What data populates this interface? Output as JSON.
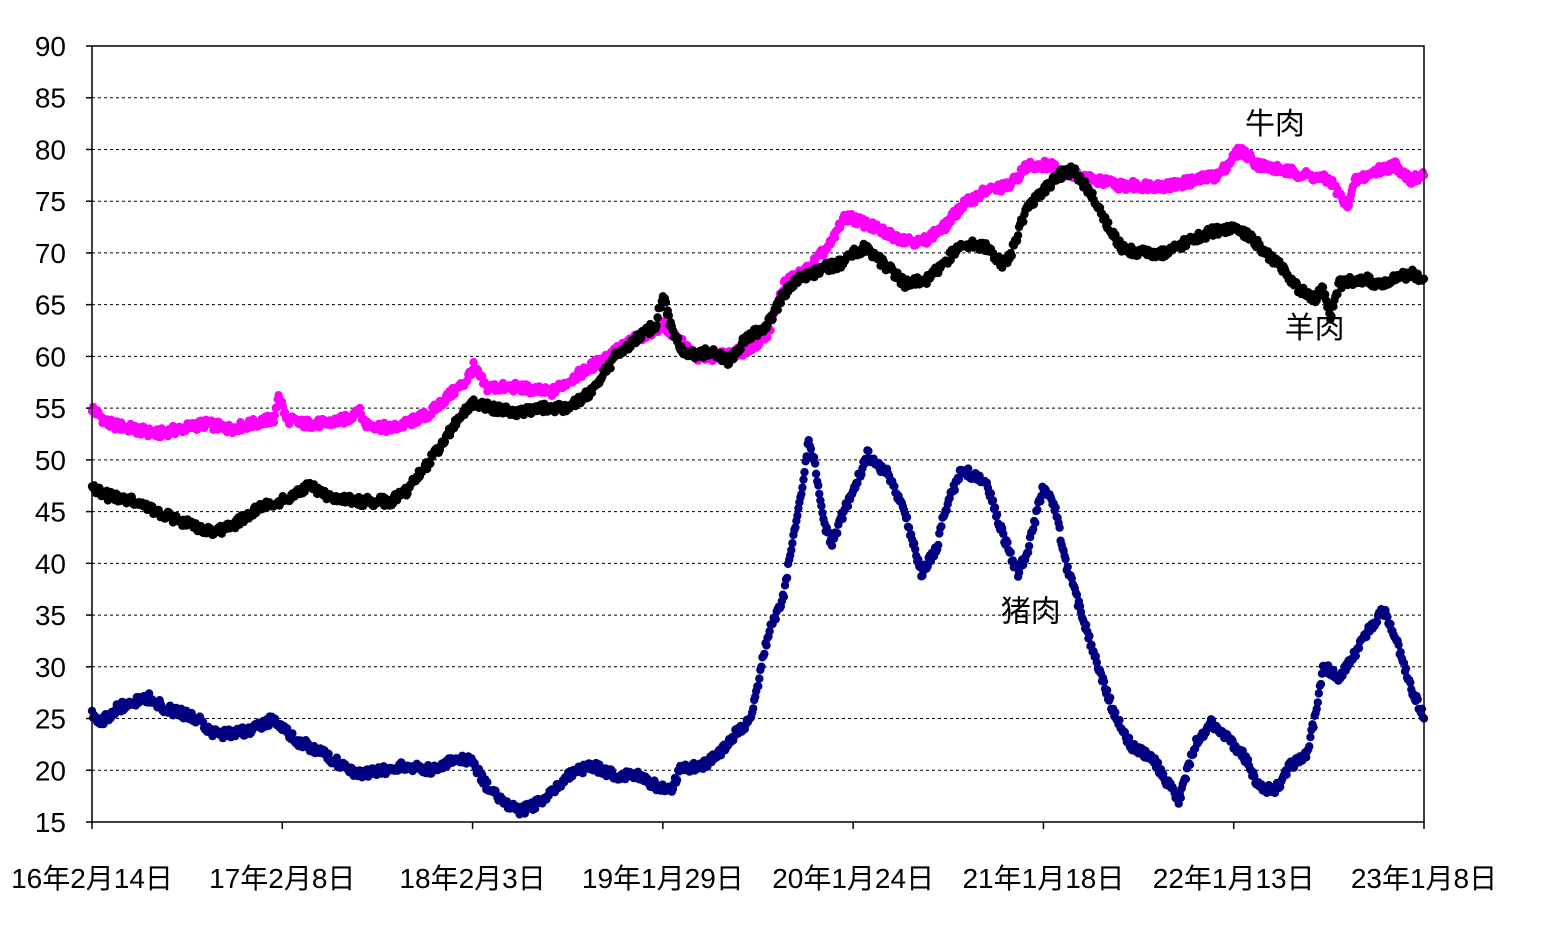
{
  "chart_data": {
    "type": "scatter",
    "title": "",
    "xlabel": "",
    "ylabel": "",
    "x_domain": [
      "2016-02-14",
      "2023-01-08"
    ],
    "ylim": [
      15,
      90
    ],
    "y_ticks": [
      15,
      20,
      25,
      30,
      35,
      40,
      45,
      50,
      55,
      60,
      65,
      70,
      75,
      80,
      85,
      90
    ],
    "x_tick_labels": [
      {
        "date": "2016-02-14",
        "label": "16年2月14日"
      },
      {
        "date": "2017-02-08",
        "label": "17年2月8日"
      },
      {
        "date": "2018-02-03",
        "label": "18年2月3日"
      },
      {
        "date": "2019-01-29",
        "label": "19年1月29日"
      },
      {
        "date": "2020-01-24",
        "label": "20年1月24日"
      },
      {
        "date": "2021-01-18",
        "label": "21年1月18日"
      },
      {
        "date": "2022-01-13",
        "label": "22年1月13日"
      },
      {
        "date": "2023-01-08",
        "label": "23年1月8日"
      }
    ],
    "grid": "horizontal-dashed",
    "series": [
      {
        "name": "牛肉",
        "color": "#ff00ff",
        "points": [
          [
            "2016-02-14",
            55.0
          ],
          [
            "2016-03-15",
            53.5
          ],
          [
            "2016-05-01",
            53.0
          ],
          [
            "2016-06-15",
            52.5
          ],
          [
            "2016-08-01",
            53.0
          ],
          [
            "2016-09-15",
            53.5
          ],
          [
            "2016-11-01",
            53.0
          ],
          [
            "2016-12-15",
            53.5
          ],
          [
            "2017-01-25",
            54.0
          ],
          [
            "2017-02-01",
            56.5
          ],
          [
            "2017-02-15",
            54.0
          ],
          [
            "2017-03-15",
            53.5
          ],
          [
            "2017-05-01",
            53.5
          ],
          [
            "2017-06-15",
            54.0
          ],
          [
            "2017-07-01",
            55.0
          ],
          [
            "2017-07-15",
            53.5
          ],
          [
            "2017-09-01",
            53.0
          ],
          [
            "2017-10-01",
            53.5
          ],
          [
            "2017-11-15",
            54.5
          ],
          [
            "2017-12-15",
            56.0
          ],
          [
            "2018-01-20",
            57.5
          ],
          [
            "2018-02-05",
            59.0
          ],
          [
            "2018-03-01",
            57.0
          ],
          [
            "2018-05-01",
            57.0
          ],
          [
            "2018-07-01",
            56.5
          ],
          [
            "2018-08-15",
            58.0
          ],
          [
            "2018-10-01",
            59.5
          ],
          [
            "2018-12-01",
            61.5
          ],
          [
            "2019-01-29",
            63.0
          ],
          [
            "2019-03-01",
            61.5
          ],
          [
            "2019-04-01",
            60.0
          ],
          [
            "2019-05-15",
            60.0
          ],
          [
            "2019-07-01",
            60.5
          ],
          [
            "2019-08-15",
            62.0
          ],
          [
            "2019-09-15",
            67.0
          ],
          [
            "2019-11-01",
            68.5
          ],
          [
            "2019-12-15",
            71.0
          ],
          [
            "2020-01-01",
            73.0
          ],
          [
            "2020-01-15",
            73.5
          ],
          [
            "2020-03-01",
            72.5
          ],
          [
            "2020-04-15",
            71.5
          ],
          [
            "2020-06-01",
            71.0
          ],
          [
            "2020-07-15",
            72.5
          ],
          [
            "2020-08-15",
            74.5
          ],
          [
            "2020-10-01",
            76.0
          ],
          [
            "2020-11-15",
            76.5
          ],
          [
            "2020-12-20",
            78.5
          ],
          [
            "2021-02-01",
            78.5
          ],
          [
            "2021-03-15",
            77.5
          ],
          [
            "2021-05-01",
            77.0
          ],
          [
            "2021-06-15",
            76.5
          ],
          [
            "2021-08-01",
            76.5
          ],
          [
            "2021-09-15",
            76.5
          ],
          [
            "2021-11-01",
            77.0
          ],
          [
            "2021-12-15",
            77.5
          ],
          [
            "2022-01-25",
            80.0
          ],
          [
            "2022-03-01",
            78.5
          ],
          [
            "2022-04-15",
            78.0
          ],
          [
            "2022-06-01",
            77.5
          ],
          [
            "2022-07-15",
            77.0
          ],
          [
            "2022-08-15",
            74.5
          ],
          [
            "2022-09-01",
            77.0
          ],
          [
            "2022-10-15",
            78.0
          ],
          [
            "2022-11-15",
            78.5
          ],
          [
            "2022-12-15",
            77.0
          ],
          [
            "2023-01-08",
            77.5
          ]
        ]
      },
      {
        "name": "羊肉",
        "color": "#000000",
        "points": [
          [
            "2016-02-14",
            47.5
          ],
          [
            "2016-03-15",
            46.5
          ],
          [
            "2016-05-01",
            46.0
          ],
          [
            "2016-06-15",
            45.0
          ],
          [
            "2016-08-01",
            44.0
          ],
          [
            "2016-09-01",
            43.5
          ],
          [
            "2016-10-01",
            43.0
          ],
          [
            "2016-11-01",
            43.5
          ],
          [
            "2016-12-01",
            44.5
          ],
          [
            "2017-01-01",
            45.5
          ],
          [
            "2017-02-01",
            46.0
          ],
          [
            "2017-03-01",
            46.5
          ],
          [
            "2017-04-01",
            47.5
          ],
          [
            "2017-05-01",
            46.5
          ],
          [
            "2017-07-01",
            46.0
          ],
          [
            "2017-09-01",
            46.0
          ],
          [
            "2017-10-01",
            47.0
          ],
          [
            "2017-11-01",
            49.0
          ],
          [
            "2017-12-01",
            51.0
          ],
          [
            "2018-01-01",
            53.5
          ],
          [
            "2018-02-03",
            55.5
          ],
          [
            "2018-03-15",
            55.0
          ],
          [
            "2018-05-01",
            54.5
          ],
          [
            "2018-06-15",
            55.0
          ],
          [
            "2018-08-01",
            55.0
          ],
          [
            "2018-09-15",
            56.5
          ],
          [
            "2018-11-01",
            60.0
          ],
          [
            "2018-12-15",
            62.0
          ],
          [
            "2019-01-15",
            63.0
          ],
          [
            "2019-01-29",
            66.0
          ],
          [
            "2019-02-15",
            62.5
          ],
          [
            "2019-03-15",
            60.0
          ],
          [
            "2019-05-01",
            60.5
          ],
          [
            "2019-06-01",
            59.5
          ],
          [
            "2019-07-01",
            61.5
          ],
          [
            "2019-08-15",
            63.0
          ],
          [
            "2019-09-15",
            66.0
          ],
          [
            "2019-10-15",
            67.5
          ],
          [
            "2019-12-01",
            68.5
          ],
          [
            "2020-01-01",
            69.0
          ],
          [
            "2020-01-24",
            70.0
          ],
          [
            "2020-02-15",
            70.5
          ],
          [
            "2020-04-01",
            68.5
          ],
          [
            "2020-05-01",
            67.0
          ],
          [
            "2020-06-15",
            67.5
          ],
          [
            "2020-07-15",
            69.0
          ],
          [
            "2020-08-15",
            71.0
          ],
          [
            "2020-10-01",
            70.5
          ],
          [
            "2020-11-01",
            69.0
          ],
          [
            "2020-11-15",
            69.5
          ],
          [
            "2020-12-15",
            74.0
          ],
          [
            "2021-01-18",
            76.0
          ],
          [
            "2021-02-15",
            77.5
          ],
          [
            "2021-03-15",
            78.0
          ],
          [
            "2021-04-15",
            76.0
          ],
          [
            "2021-05-15",
            73.0
          ],
          [
            "2021-06-15",
            70.5
          ],
          [
            "2021-07-15",
            70.0
          ],
          [
            "2021-09-01",
            70.0
          ],
          [
            "2021-10-15",
            71.0
          ],
          [
            "2021-12-01",
            72.0
          ],
          [
            "2022-01-13",
            72.5
          ],
          [
            "2022-02-15",
            71.5
          ],
          [
            "2022-03-15",
            70.0
          ],
          [
            "2022-04-15",
            68.5
          ],
          [
            "2022-05-15",
            66.5
          ],
          [
            "2022-06-15",
            65.5
          ],
          [
            "2022-07-01",
            66.5
          ],
          [
            "2022-07-15",
            64.0
          ],
          [
            "2022-08-01",
            67.0
          ],
          [
            "2022-09-15",
            67.5
          ],
          [
            "2022-10-15",
            67.0
          ],
          [
            "2022-11-15",
            67.5
          ],
          [
            "2022-12-15",
            68.0
          ],
          [
            "2023-01-08",
            67.5
          ]
        ]
      },
      {
        "name": "猪肉",
        "color": "#000080",
        "points": [
          [
            "2016-02-14",
            25.5
          ],
          [
            "2016-03-01",
            24.5
          ],
          [
            "2016-04-01",
            26.0
          ],
          [
            "2016-05-01",
            26.5
          ],
          [
            "2016-06-01",
            27.0
          ],
          [
            "2016-07-01",
            26.0
          ],
          [
            "2016-08-01",
            25.5
          ],
          [
            "2016-09-01",
            25.0
          ],
          [
            "2016-10-01",
            23.5
          ],
          [
            "2016-11-01",
            23.5
          ],
          [
            "2016-12-15",
            24.0
          ],
          [
            "2017-01-25",
            25.0
          ],
          [
            "2017-03-01",
            23.0
          ],
          [
            "2017-04-15",
            22.0
          ],
          [
            "2017-06-01",
            20.5
          ],
          [
            "2017-07-01",
            19.5
          ],
          [
            "2017-08-15",
            20.0
          ],
          [
            "2017-10-01",
            20.5
          ],
          [
            "2017-11-15",
            20.0
          ],
          [
            "2018-01-01",
            21.0
          ],
          [
            "2018-02-01",
            21.0
          ],
          [
            "2018-03-01",
            18.5
          ],
          [
            "2018-04-01",
            17.0
          ],
          [
            "2018-05-01",
            16.0
          ],
          [
            "2018-06-15",
            17.0
          ],
          [
            "2018-08-01",
            19.5
          ],
          [
            "2018-09-15",
            20.5
          ],
          [
            "2018-11-01",
            19.5
          ],
          [
            "2018-12-15",
            19.5
          ],
          [
            "2019-01-15",
            18.5
          ],
          [
            "2019-02-15",
            18.0
          ],
          [
            "2019-03-01",
            20.0
          ],
          [
            "2019-04-15",
            20.5
          ],
          [
            "2019-05-15",
            21.5
          ],
          [
            "2019-06-15",
            23.5
          ],
          [
            "2019-07-15",
            25.0
          ],
          [
            "2019-08-15",
            33.0
          ],
          [
            "2019-09-15",
            37.0
          ],
          [
            "2019-10-01",
            42.0
          ],
          [
            "2019-10-20",
            47.5
          ],
          [
            "2019-11-01",
            52.0
          ],
          [
            "2019-11-15",
            49.0
          ],
          [
            "2019-12-01",
            43.5
          ],
          [
            "2019-12-15",
            42.0
          ],
          [
            "2020-01-10",
            45.5
          ],
          [
            "2020-02-01",
            48.0
          ],
          [
            "2020-02-20",
            50.5
          ],
          [
            "2020-04-01",
            48.5
          ],
          [
            "2020-05-01",
            45.0
          ],
          [
            "2020-06-01",
            39.0
          ],
          [
            "2020-07-01",
            41.5
          ],
          [
            "2020-07-15",
            45.0
          ],
          [
            "2020-08-15",
            49.0
          ],
          [
            "2020-10-01",
            48.0
          ],
          [
            "2020-11-01",
            43.0
          ],
          [
            "2020-12-01",
            39.0
          ],
          [
            "2020-12-20",
            41.5
          ],
          [
            "2021-01-18",
            47.5
          ],
          [
            "2021-02-10",
            45.0
          ],
          [
            "2021-03-01",
            40.0
          ],
          [
            "2021-04-01",
            35.0
          ],
          [
            "2021-05-01",
            30.0
          ],
          [
            "2021-06-01",
            25.5
          ],
          [
            "2021-07-01",
            22.5
          ],
          [
            "2021-08-15",
            21.0
          ],
          [
            "2021-10-01",
            17.0
          ],
          [
            "2021-11-01",
            22.5
          ],
          [
            "2021-12-01",
            24.5
          ],
          [
            "2022-01-01",
            23.0
          ],
          [
            "2022-02-01",
            21.5
          ],
          [
            "2022-03-01",
            18.5
          ],
          [
            "2022-04-01",
            18.0
          ],
          [
            "2022-05-01",
            20.5
          ],
          [
            "2022-06-01",
            21.5
          ],
          [
            "2022-06-15",
            25.0
          ],
          [
            "2022-07-01",
            30.0
          ],
          [
            "2022-08-01",
            29.0
          ],
          [
            "2022-09-01",
            31.5
          ],
          [
            "2022-10-01",
            34.0
          ],
          [
            "2022-10-25",
            35.5
          ],
          [
            "2022-11-15",
            33.0
          ],
          [
            "2022-12-15",
            28.0
          ],
          [
            "2023-01-08",
            25.0
          ]
        ]
      }
    ],
    "labels": [
      {
        "text": "牛肉",
        "series": "牛肉",
        "date": "2022-04-01",
        "y": 81.5
      },
      {
        "text": "羊肉",
        "series": "羊肉",
        "date": "2022-06-15",
        "y": 61.8
      },
      {
        "text": "猪肉",
        "series": "猪肉",
        "date": "2020-12-25",
        "y": 34.4
      }
    ]
  }
}
